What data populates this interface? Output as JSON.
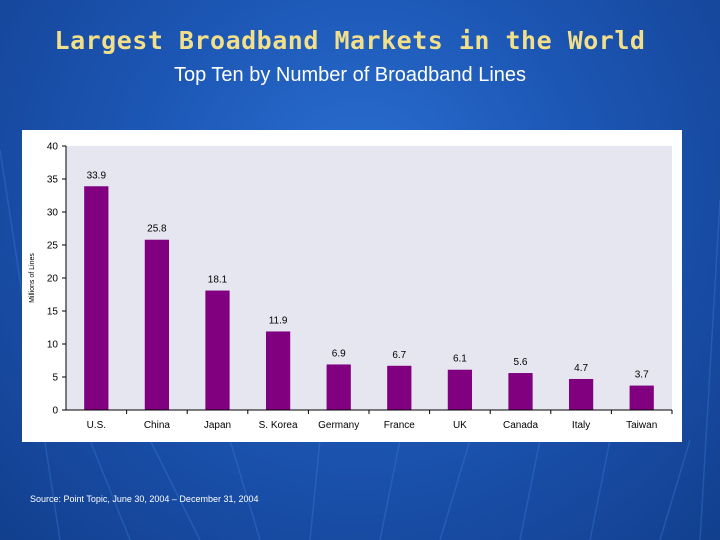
{
  "slide": {
    "title": "Largest Broadband Markets in the World",
    "subtitle": "Top Ten by Number of Broadband Lines",
    "source": "Source: Point Topic, June 30, 2004 – December 31, 2004"
  },
  "colors": {
    "bar": "#800080",
    "plot_bg": "#e6e6f0",
    "title": "#f2df8a"
  },
  "chart_data": {
    "type": "bar",
    "title": "",
    "xlabel": "",
    "ylabel": "Millions of Lines",
    "ylim": [
      0,
      40
    ],
    "yticks": [
      0,
      5,
      10,
      15,
      20,
      25,
      30,
      35,
      40
    ],
    "categories": [
      "U.S.",
      "China",
      "Japan",
      "S. Korea",
      "Germany",
      "France",
      "UK",
      "Canada",
      "Italy",
      "Taiwan"
    ],
    "values": [
      33.9,
      25.8,
      18.1,
      11.9,
      6.9,
      6.7,
      6.1,
      5.6,
      4.7,
      3.7
    ],
    "labels": [
      "33.9",
      "25.8",
      "18.1",
      "11.9",
      "6.9",
      "6.7",
      "6.1",
      "5.6",
      "4.7",
      "3.7"
    ]
  }
}
